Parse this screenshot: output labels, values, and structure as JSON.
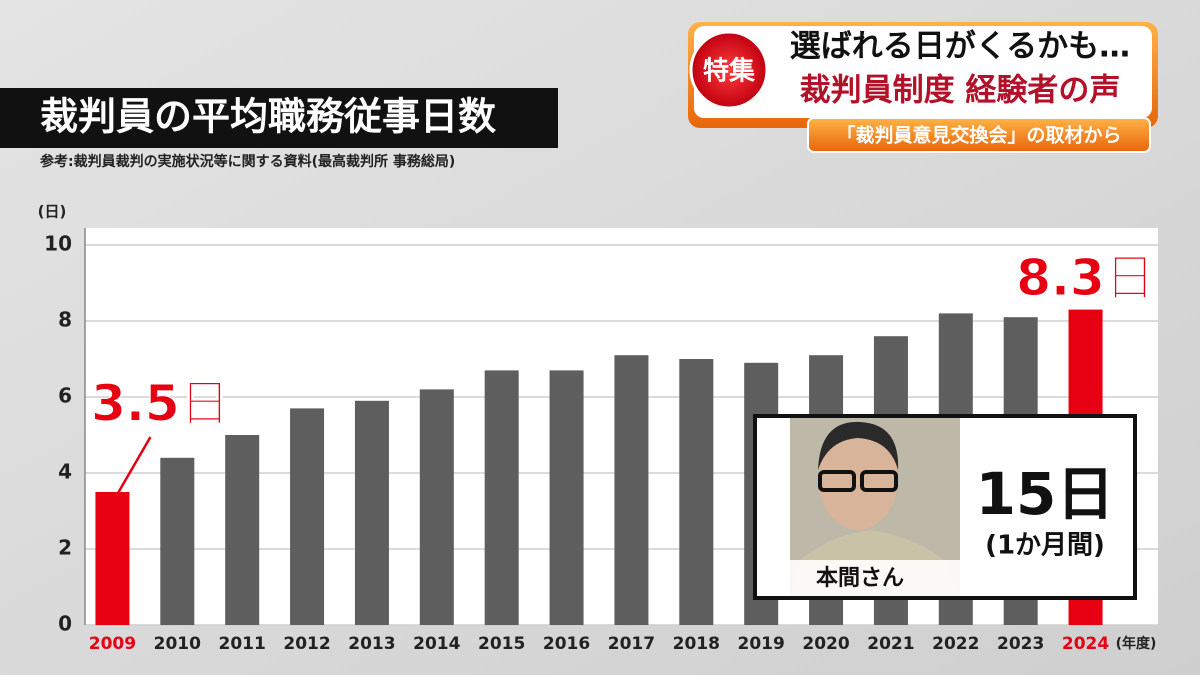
{
  "chart_data": {
    "type": "bar",
    "title": "裁判員の平均職務従事日数",
    "source": "参考:裁判員裁判の実施状況等に関する資料(最高裁判所 事務総局)",
    "y_unit": "(日)",
    "x_unit": "(年度)",
    "categories": [
      "2009",
      "2010",
      "2011",
      "2012",
      "2013",
      "2014",
      "2015",
      "2016",
      "2017",
      "2018",
      "2019",
      "2020",
      "2021",
      "2022",
      "2023",
      "2024"
    ],
    "values": [
      3.5,
      4.4,
      5.0,
      5.7,
      5.9,
      6.2,
      6.7,
      6.7,
      7.1,
      7.0,
      6.9,
      7.1,
      7.6,
      8.2,
      8.1,
      8.3
    ],
    "value_labels": [
      "3.5日",
      null,
      null,
      null,
      null,
      null,
      null,
      null,
      null,
      null,
      null,
      null,
      null,
      null,
      null,
      "8.3日"
    ],
    "colors": [
      "#e60012",
      "#5e5e5e",
      "#5e5e5e",
      "#5e5e5e",
      "#5e5e5e",
      "#5e5e5e",
      "#5e5e5e",
      "#5e5e5e",
      "#5e5e5e",
      "#5e5e5e",
      "#5e5e5e",
      "#5e5e5e",
      "#5e5e5e",
      "#5e5e5e",
      "#5e5e5e",
      "#e60012"
    ],
    "ylim": [
      0,
      10
    ],
    "yticks": [
      0,
      2,
      4,
      6,
      8,
      10
    ],
    "grid": true,
    "inset": {
      "value_text": "15日",
      "note": "(1か月間)",
      "name": "本間さん"
    }
  },
  "header": {
    "badge": "特集",
    "line1": "選ばれる日がくるかも…",
    "line2": "裁判員制度 経験者の声",
    "subtitle": "「裁判員意見交換会」の取材から"
  }
}
